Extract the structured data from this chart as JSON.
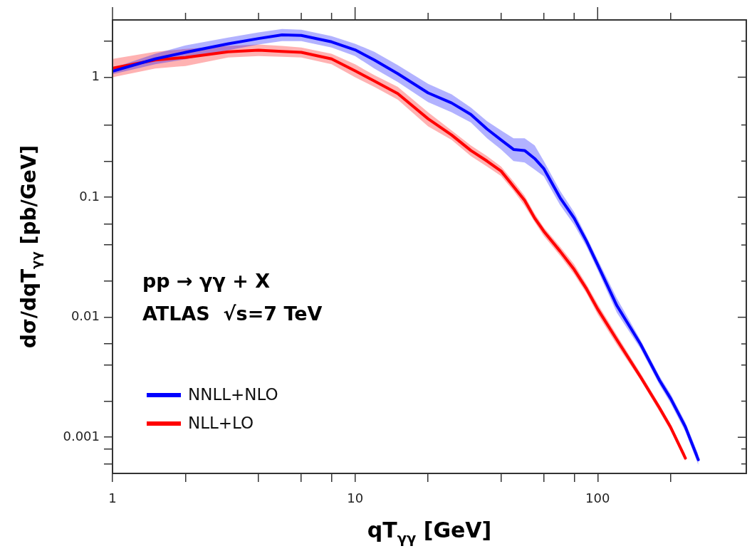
{
  "chart_data": {
    "type": "line",
    "log": "xy",
    "xlabel": "qT$_{γγ}$ [GeV]",
    "ylabel": "dσ/dqT$_{γγ}$ [pb/GeV]",
    "annotations": [
      "pp → γγ + X",
      "ATLAS  √s=7 TeV"
    ],
    "legend": "bottom left",
    "xlim": [
      1,
      410
    ],
    "xticks": [
      1,
      {
        "value": 2,
        "label": null
      },
      {
        "value": 4,
        "label": null
      },
      {
        "value": 6,
        "label": null
      },
      {
        "value": 8,
        "label": null
      },
      10,
      {
        "value": 20,
        "label": null
      },
      {
        "value": 40,
        "label": null
      },
      {
        "value": 60,
        "label": null
      },
      {
        "value": 80,
        "label": null
      },
      100,
      {
        "value": 200,
        "label": null
      }
    ],
    "ylim": [
      0.0005,
      3
    ],
    "yticks": [
      {
        "value": 0.0006,
        "label": null
      },
      {
        "value": 0.0008,
        "label": null
      },
      0.001,
      {
        "value": 0.002,
        "label": null
      },
      {
        "value": 0.004,
        "label": null
      },
      {
        "value": 0.006,
        "label": null
      },
      0.01,
      {
        "value": 0.02,
        "label": null
      },
      {
        "value": 0.04,
        "label": null
      },
      {
        "value": 0.06,
        "label": null
      },
      0.1,
      {
        "value": 0.2,
        "label": null
      },
      {
        "value": 0.4,
        "label": null
      },
      1,
      {
        "value": 2,
        "label": null
      }
    ],
    "series": [
      {
        "name": "NNLL+NLO",
        "color": "#0000ff",
        "x": [
          1,
          1.5,
          2,
          3,
          4,
          5,
          6,
          8,
          10,
          12,
          15,
          20,
          25,
          30,
          35,
          40,
          45,
          50,
          55,
          60,
          70,
          80,
          90,
          100,
          120,
          150,
          180,
          200,
          230,
          260
        ],
        "values": [
          1.12,
          1.42,
          1.61,
          1.9,
          2.1,
          2.25,
          2.23,
          1.97,
          1.69,
          1.39,
          1.07,
          0.74,
          0.61,
          0.49,
          0.37,
          0.3,
          0.25,
          0.245,
          0.21,
          0.173,
          0.099,
          0.067,
          0.043,
          0.0274,
          0.0125,
          0.006,
          0.00297,
          0.0021,
          0.00122,
          0.00065
        ],
        "upper": [
          1.19,
          1.57,
          1.84,
          2.14,
          2.36,
          2.52,
          2.49,
          2.2,
          1.9,
          1.63,
          1.26,
          0.88,
          0.72,
          0.56,
          0.43,
          0.36,
          0.31,
          0.31,
          0.27,
          0.2,
          0.113,
          0.075,
          0.047,
          0.0303,
          0.0144,
          0.0065,
          0.00322,
          0.00229,
          0.00133,
          0.00072
        ],
        "lower": [
          1.06,
          1.28,
          1.41,
          1.68,
          1.87,
          2,
          2,
          1.77,
          1.5,
          1.18,
          0.91,
          0.62,
          0.51,
          0.42,
          0.31,
          0.25,
          0.2,
          0.195,
          0.17,
          0.149,
          0.086,
          0.059,
          0.0387,
          0.0247,
          0.0109,
          0.0055,
          0.00273,
          0.00192,
          0.00111,
          0.00059
        ]
      },
      {
        "name": "NLL+LO",
        "color": "#ff0000",
        "x": [
          1,
          1.5,
          2,
          3,
          4,
          5,
          6,
          8,
          10,
          12,
          15,
          20,
          25,
          30,
          35,
          40,
          45,
          50,
          55,
          60,
          70,
          80,
          90,
          100,
          120,
          150,
          180,
          200,
          230
        ],
        "values": [
          1.19,
          1.39,
          1.46,
          1.63,
          1.68,
          1.64,
          1.61,
          1.42,
          1.13,
          0.93,
          0.73,
          0.45,
          0.33,
          0.245,
          0.2,
          0.165,
          0.123,
          0.094,
          0.067,
          0.052,
          0.0355,
          0.025,
          0.0172,
          0.0117,
          0.0065,
          0.0032,
          0.00175,
          0.00121,
          0.00067
        ],
        "upper": [
          1.42,
          1.63,
          1.72,
          1.82,
          1.87,
          1.82,
          1.77,
          1.57,
          1.28,
          1.04,
          0.83,
          0.51,
          0.36,
          0.27,
          0.22,
          0.18,
          0.135,
          0.103,
          0.073,
          0.056,
          0.0387,
          0.0276,
          0.0188,
          0.0129,
          0.0071,
          0.00344,
          0.00187,
          0.00129,
          0.00072
        ],
        "lower": [
          1,
          1.18,
          1.24,
          1.46,
          1.5,
          1.48,
          1.46,
          1.28,
          1,
          0.83,
          0.65,
          0.39,
          0.3,
          0.22,
          0.18,
          0.15,
          0.113,
          0.085,
          0.062,
          0.0475,
          0.0325,
          0.0228,
          0.0158,
          0.0106,
          0.0059,
          0.00301,
          0.00163,
          0.00113,
          0.00063
        ]
      }
    ]
  }
}
